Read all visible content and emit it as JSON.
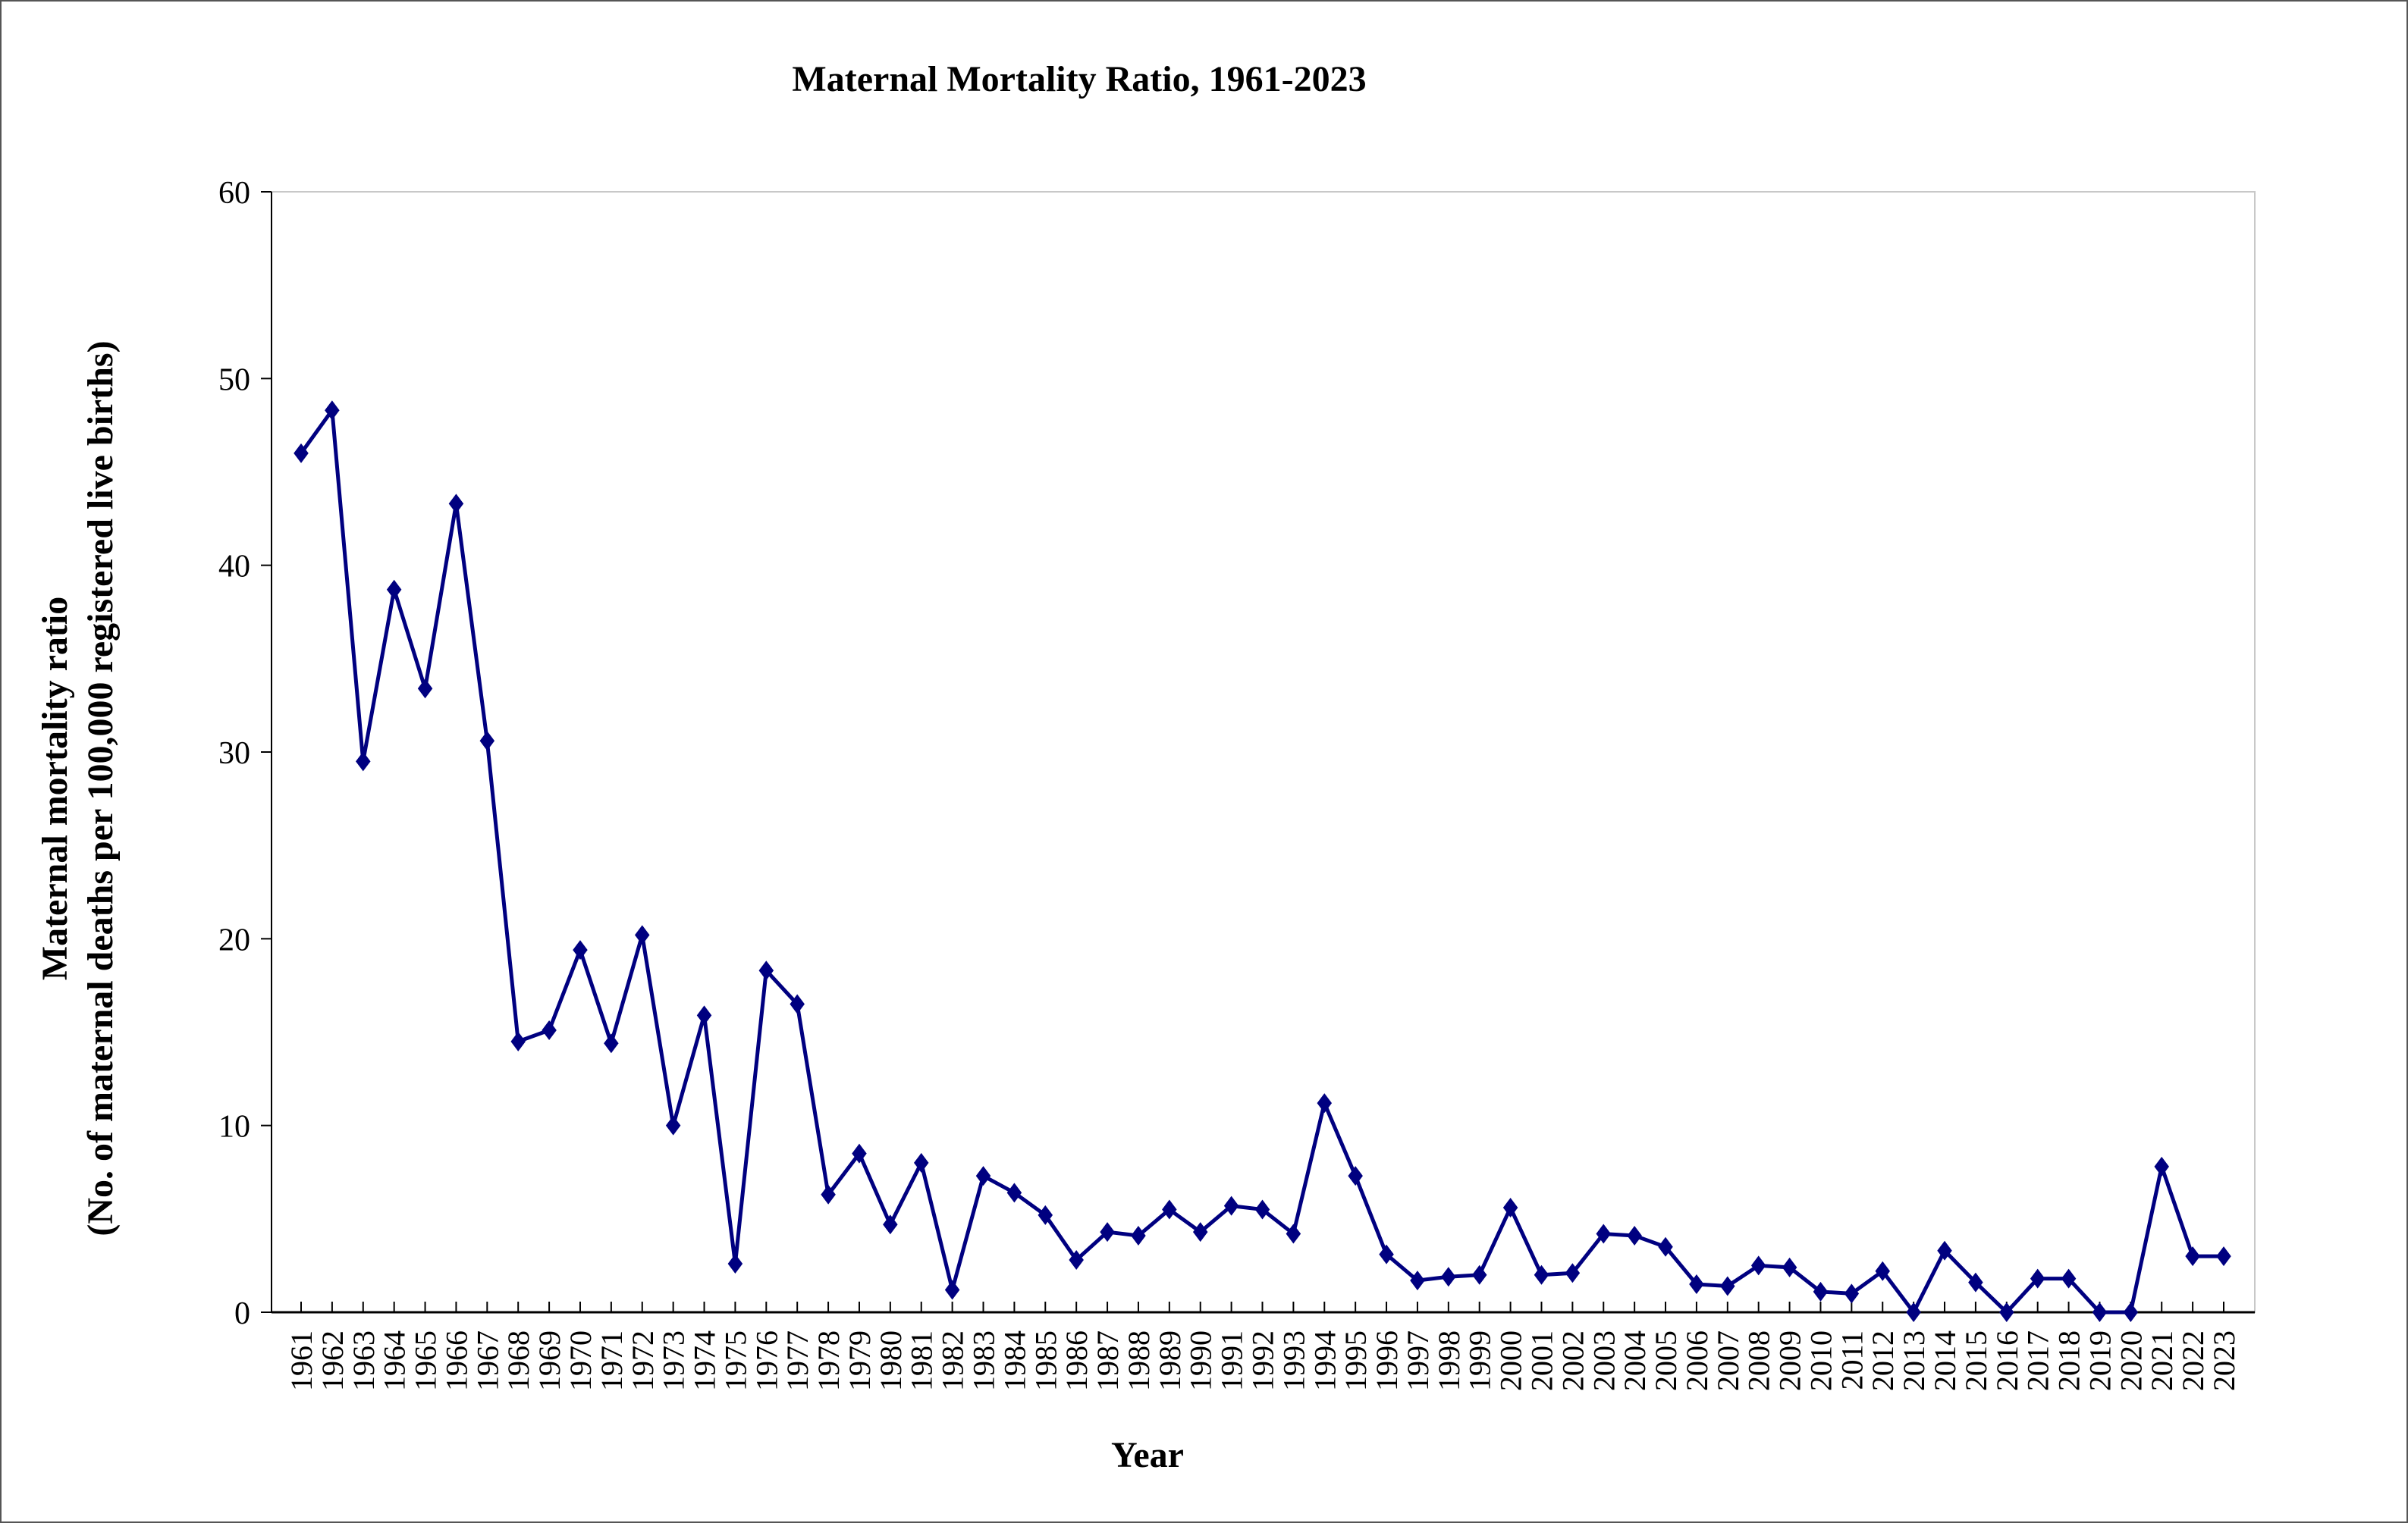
{
  "chart_data": {
    "type": "line",
    "title": "Maternal Mortality Ratio, 1961-2023",
    "xlabel": "Year",
    "ylabel": [
      "Maternal mortality ratio",
      "(No. of maternal deaths per 100,000 registered live births)"
    ],
    "ylim": [
      0,
      60
    ],
    "yticks": [
      0,
      10,
      20,
      30,
      40,
      50,
      60
    ],
    "grid": false,
    "legend": "none",
    "marker": "diamond",
    "color": "#000080",
    "x": [
      1961,
      1962,
      1963,
      1964,
      1965,
      1966,
      1967,
      1968,
      1969,
      1970,
      1971,
      1972,
      1973,
      1974,
      1975,
      1976,
      1977,
      1978,
      1979,
      1980,
      1981,
      1982,
      1983,
      1984,
      1985,
      1986,
      1987,
      1988,
      1989,
      1990,
      1991,
      1992,
      1993,
      1994,
      1995,
      1996,
      1997,
      1998,
      1999,
      2000,
      2001,
      2002,
      2003,
      2004,
      2005,
      2006,
      2007,
      2008,
      2009,
      2010,
      2011,
      2012,
      2013,
      2014,
      2015,
      2016,
      2017,
      2018,
      2019,
      2020,
      2021,
      2022,
      2023
    ],
    "values": [
      46.0,
      48.3,
      29.5,
      38.7,
      33.4,
      43.3,
      30.6,
      14.5,
      15.1,
      19.4,
      14.4,
      20.2,
      10.0,
      15.9,
      2.6,
      18.3,
      16.5,
      6.3,
      8.5,
      4.7,
      8.0,
      1.2,
      7.3,
      6.4,
      5.2,
      2.8,
      4.3,
      4.1,
      5.5,
      4.3,
      5.7,
      5.5,
      4.2,
      11.2,
      7.3,
      3.1,
      1.7,
      1.9,
      2.0,
      5.6,
      2.0,
      2.1,
      4.2,
      4.1,
      3.5,
      1.5,
      1.4,
      2.5,
      2.4,
      1.1,
      1.0,
      2.2,
      0.0,
      3.3,
      1.6,
      0.0,
      1.8,
      1.8,
      0.0,
      0.0,
      7.8,
      3.0,
      3.0
    ]
  }
}
